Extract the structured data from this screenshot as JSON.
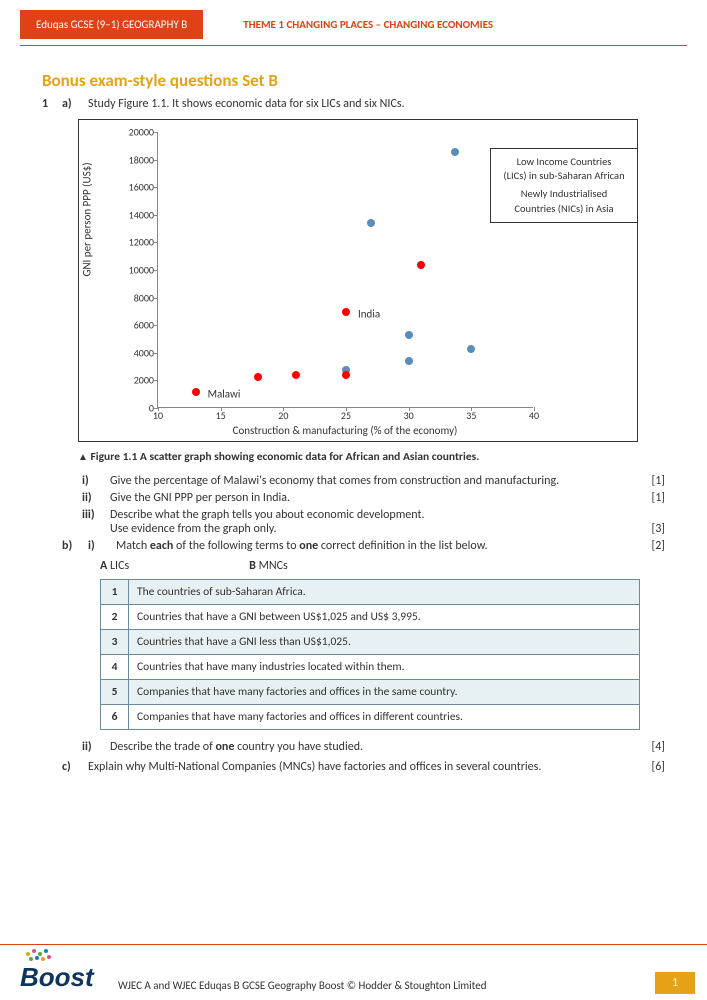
{
  "header": {
    "tab": "Eduqas GCSE (9–1) GEOGRAPHY B",
    "theme": "THEME 1 CHANGING PLACES – CHANGING ECONOMIES"
  },
  "colors": {
    "accent_orange": "#e04117",
    "accent_gold": "#e6a217",
    "table_border": "#6a8a9c",
    "table_band": "#e7f0f2"
  },
  "section_title": "Bonus exam-style questions Set B",
  "q1": {
    "num": "1",
    "a": {
      "label": "a)",
      "intro": "Study Figure 1.1. It shows economic data for six LICs and six NICs.",
      "caption_tri": "▲",
      "caption": " Figure 1.1 A scatter graph showing economic data for African and Asian countries.",
      "i": {
        "label": "i)",
        "text": "Give the percentage of Malawi's economy that comes from construction and manufacturing.",
        "marks": "[1]"
      },
      "ii": {
        "label": "ii)",
        "text": "Give the GNI PPP per person in India.",
        "marks": "[1]"
      },
      "iii": {
        "label": "iii)",
        "text": "Describe what the graph tells you about economic development.",
        "text2": "Use evidence from the graph only.",
        "marks": "[3]"
      }
    },
    "b": {
      "label": "b)",
      "i": {
        "label": "i)",
        "text": "Match each of the following terms to one correct definition in the list below.",
        "marks": "[2]"
      },
      "term_a_label": "A",
      "term_a": "LICs",
      "term_b_label": "B",
      "term_b": "MNCs",
      "defs": [
        {
          "n": "1",
          "t": "The countries of sub-Saharan Africa."
        },
        {
          "n": "2",
          "t": "Countries that have a GNI between US$1,025 and US$ 3,995."
        },
        {
          "n": "3",
          "t": "Countries that have a GNI less than US$1,025."
        },
        {
          "n": "4",
          "t": "Countries that have many industries located within them."
        },
        {
          "n": "5",
          "t": "Companies that have many factories and offices in the same country."
        },
        {
          "n": "6",
          "t": "Companies that have many factories and offices in different countries."
        }
      ],
      "ii": {
        "label": "ii)",
        "text": "Describe the trade of one country you have studied.",
        "marks": "[4]"
      }
    },
    "c": {
      "label": "c)",
      "text": "Explain why Multi-National Companies (MNCs) have factories and offices in several countries.",
      "marks": "[6]"
    }
  },
  "chart": {
    "type": "scatter",
    "xlabel": "Construction & manufacturing (% of the economy)",
    "ylabel": "GNI per person PPP (US$)",
    "xlim": [
      10,
      40
    ],
    "ylim": [
      0,
      20000
    ],
    "xticks": [
      10,
      15,
      20,
      25,
      30,
      35,
      40
    ],
    "yticks": [
      0,
      2000,
      4000,
      6000,
      8000,
      10000,
      12000,
      14000,
      16000,
      18000,
      20000
    ],
    "lic_color": "#ff0000",
    "nic_color": "#5b8db8",
    "marker_size": 8,
    "lic_points": [
      {
        "x": 13,
        "y": 1100,
        "label": "Malawi"
      },
      {
        "x": 18,
        "y": 2200
      },
      {
        "x": 21,
        "y": 2300
      },
      {
        "x": 25,
        "y": 2300
      },
      {
        "x": 25,
        "y": 6900,
        "label": "India"
      },
      {
        "x": 31,
        "y": 10300
      }
    ],
    "nic_points": [
      {
        "x": 25,
        "y": 2700
      },
      {
        "x": 27,
        "y": 13300
      },
      {
        "x": 30,
        "y": 5200
      },
      {
        "x": 30,
        "y": 3300
      },
      {
        "x": 33.7,
        "y": 18500
      },
      {
        "x": 35,
        "y": 4200
      }
    ],
    "legend": {
      "line1": "Low Income Countries",
      "line2": "(LICs) in sub-Saharan African",
      "line3": "Newly Industrialised",
      "line4": "Countries (NICs) in Asia"
    }
  },
  "footer": {
    "text": "WJEC A and WJEC Eduqas B GCSE Geography Boost © Hodder & Stoughton Limited",
    "page": "1",
    "logo_word": "Boost"
  }
}
